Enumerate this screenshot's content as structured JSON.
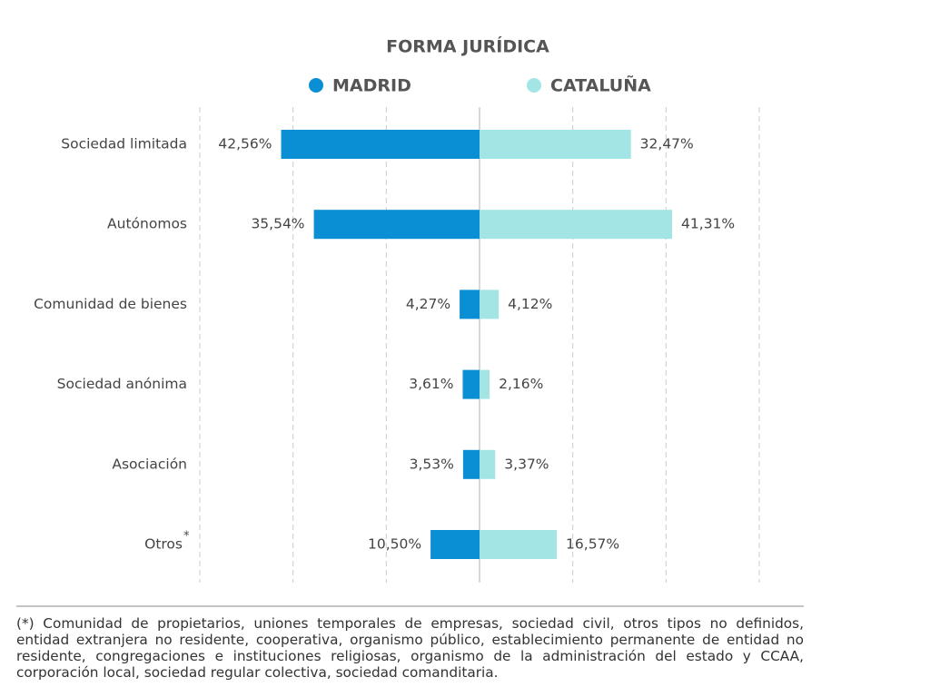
{
  "chart_data": {
    "type": "butterfly",
    "title": "FORMA JURÍDICA",
    "categories": [
      "Sociedad limitada",
      "Autónomos",
      "Comunidad de bienes",
      "Sociedad anónima",
      "Asociación",
      "Otros"
    ],
    "category_note_marker": "*",
    "series": [
      {
        "name": "MADRID",
        "color": "#0a8fd4",
        "side": "left",
        "values": [
          42.56,
          35.54,
          4.27,
          3.61,
          3.53,
          10.5
        ],
        "value_labels": [
          "42,56%",
          "35,54%",
          "4,27%",
          "3,61%",
          "3,53%",
          "10,50%"
        ]
      },
      {
        "name": "CATALUÑA",
        "color": "#a3e4e4",
        "side": "right",
        "values": [
          32.47,
          41.31,
          4.12,
          2.16,
          3.37,
          16.57
        ],
        "value_labels": [
          "32,47%",
          "41,31%",
          "4,12%",
          "2,16%",
          "3,37%",
          "16,57%"
        ]
      }
    ],
    "xlim": [
      0,
      60
    ],
    "xticks": [
      0,
      20,
      40,
      60
    ],
    "grid": true,
    "footnote": "(*) Comunidad de propietarios, uniones temporales de empresas, sociedad civil, otros tipos no definidos, entidad extranjera no residente, cooperativa, organismo público, establecimiento permanente de entidad no residente, congregaciones e instituciones religiosas, organismo de la administración del estado y CCAA, corporación local, sociedad regular colectiva, sociedad comanditaria."
  }
}
